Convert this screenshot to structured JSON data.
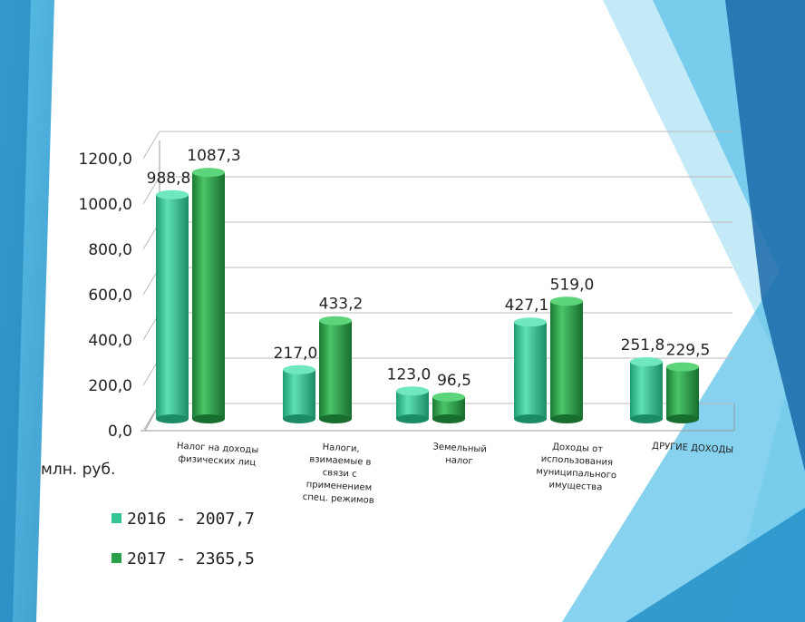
{
  "chart_data": {
    "type": "bar",
    "unit_label": "млн. руб.",
    "ylim": [
      0,
      1200
    ],
    "yticks": [
      "0,0",
      "200,0",
      "400,0",
      "600,0",
      "800,0",
      "1000,0",
      "1200,0"
    ],
    "categories": [
      [
        "Налог на доходы",
        "физических лиц"
      ],
      [
        "Налоги,",
        "взимаемые в",
        "связи с",
        "применением",
        "спец. режимов"
      ],
      [
        "Земельный",
        "налог"
      ],
      [
        "Доходы от",
        "использования",
        "муниципального",
        "имущества"
      ],
      [
        "ДРУГИЕ ДОХОДЫ"
      ]
    ],
    "series": [
      {
        "name": "2016 - 2007,7",
        "values": [
          988.8,
          217.0,
          123.0,
          427.1,
          251.8
        ],
        "labels": [
          "988,8",
          "217,0",
          "123,0",
          "427,1",
          "251,8"
        ],
        "color": "#33c494"
      },
      {
        "name": "2017  - 2365,5",
        "values": [
          1087.3,
          433.2,
          96.5,
          519.0,
          229.5
        ],
        "labels": [
          "1087,3",
          "433,2",
          "96,5",
          "519,0",
          "229,5"
        ],
        "color": "#2aa04a"
      }
    ],
    "grid": true,
    "legend_position": "bottom-left"
  }
}
